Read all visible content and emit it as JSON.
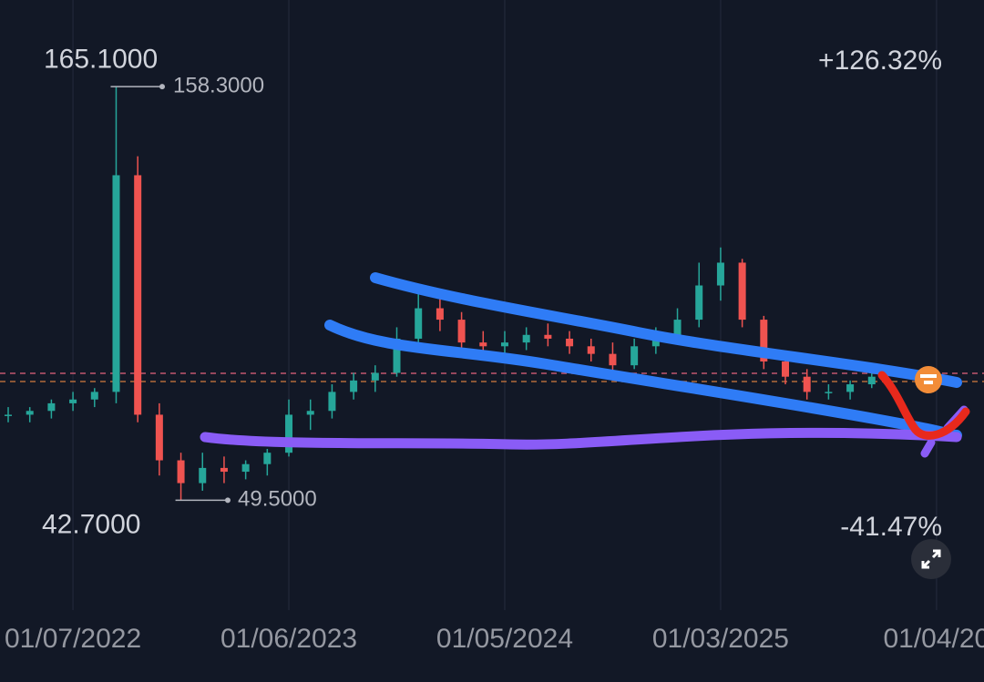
{
  "chart_data": {
    "type": "candlestick",
    "open": [
      72,
      72,
      73,
      75,
      76,
      78,
      135,
      72,
      60,
      54,
      58,
      57,
      59,
      62,
      72,
      73,
      78,
      81,
      83,
      92,
      100,
      97,
      91,
      90,
      91,
      93,
      92,
      90,
      88,
      85,
      90,
      93,
      97,
      106,
      112,
      97,
      86,
      82,
      78,
      78,
      80
    ],
    "high": [
      74,
      74,
      76,
      78,
      79,
      158.3,
      140,
      75,
      62,
      62,
      61,
      60,
      63,
      76,
      76,
      80,
      83,
      85,
      95,
      104,
      105,
      99,
      94,
      94,
      95,
      96,
      94,
      92,
      91,
      92,
      95,
      100,
      112,
      116,
      113,
      98,
      88,
      84,
      80,
      81,
      84
    ],
    "low": [
      70,
      70,
      71,
      73,
      74,
      75,
      70,
      56,
      49.5,
      52,
      54,
      55,
      56,
      61,
      68,
      71,
      76,
      78,
      82,
      90,
      94,
      89,
      88,
      87,
      89,
      90,
      88,
      86,
      83,
      84,
      88,
      92,
      95,
      102,
      95,
      84,
      80,
      76,
      76,
      76,
      79
    ],
    "close": [
      72,
      73,
      75,
      76,
      78,
      135,
      72,
      60,
      54,
      58,
      57,
      59,
      62,
      72,
      73,
      78,
      81,
      83,
      92,
      100,
      97,
      91,
      90,
      91,
      93,
      92,
      90,
      88,
      85,
      90,
      93,
      97,
      106,
      112,
      97,
      86,
      82,
      78,
      78,
      80,
      82
    ],
    "up_color": "#26a69a",
    "down_color": "#ef5350",
    "ylim": [
      23,
      181.1
    ],
    "xlim": [
      -0.38,
      45.2
    ],
    "xticks": [
      {
        "value": 3,
        "label": "01/07/2022"
      },
      {
        "value": 13,
        "label": "01/06/2023"
      },
      {
        "value": 23,
        "label": "01/05/2024"
      },
      {
        "value": 33,
        "label": "01/03/2025"
      },
      {
        "value": 43,
        "label": "01/04/20"
      }
    ],
    "range_high": {
      "value": 165.1,
      "label": "165.1000"
    },
    "range_low": {
      "value": 42.7,
      "label": "42.7000"
    },
    "peak": {
      "value": 158.3,
      "label": "158.3000"
    },
    "trough": {
      "value": 49.5,
      "label": "49.5000"
    },
    "change_up": "+126.32%",
    "change_down": "-41.47%"
  }
}
